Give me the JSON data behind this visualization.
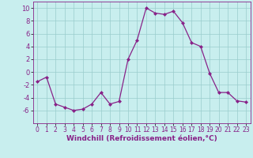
{
  "x": [
    0,
    1,
    2,
    3,
    4,
    5,
    6,
    7,
    8,
    9,
    10,
    11,
    12,
    13,
    14,
    15,
    16,
    17,
    18,
    19,
    20,
    21,
    22,
    23
  ],
  "y": [
    -1.5,
    -0.8,
    -5.0,
    -5.5,
    -6.0,
    -5.8,
    -5.0,
    -3.2,
    -5.0,
    -4.6,
    2.0,
    5.0,
    10.0,
    9.2,
    9.0,
    9.5,
    7.7,
    4.6,
    4.0,
    -0.2,
    -3.2,
    -3.2,
    -4.5,
    -4.7
  ],
  "line_color": "#882288",
  "marker": "D",
  "marker_size": 2.0,
  "linewidth": 0.9,
  "bg_color": "#c8eeee",
  "grid_color": "#99cccc",
  "xlabel": "Windchill (Refroidissement éolien,°C)",
  "xlabel_fontsize": 6.5,
  "xlabel_color": "#882288",
  "tick_label_color": "#882288",
  "spine_color": "#882288",
  "ylim": [
    -8,
    11
  ],
  "xlim": [
    -0.5,
    23.5
  ],
  "yticks": [
    -6,
    -4,
    -2,
    0,
    2,
    4,
    6,
    8,
    10
  ],
  "xticks": [
    0,
    1,
    2,
    3,
    4,
    5,
    6,
    7,
    8,
    9,
    10,
    11,
    12,
    13,
    14,
    15,
    16,
    17,
    18,
    19,
    20,
    21,
    22,
    23
  ],
  "ytick_fontsize": 6.0,
  "xtick_fontsize": 5.5
}
